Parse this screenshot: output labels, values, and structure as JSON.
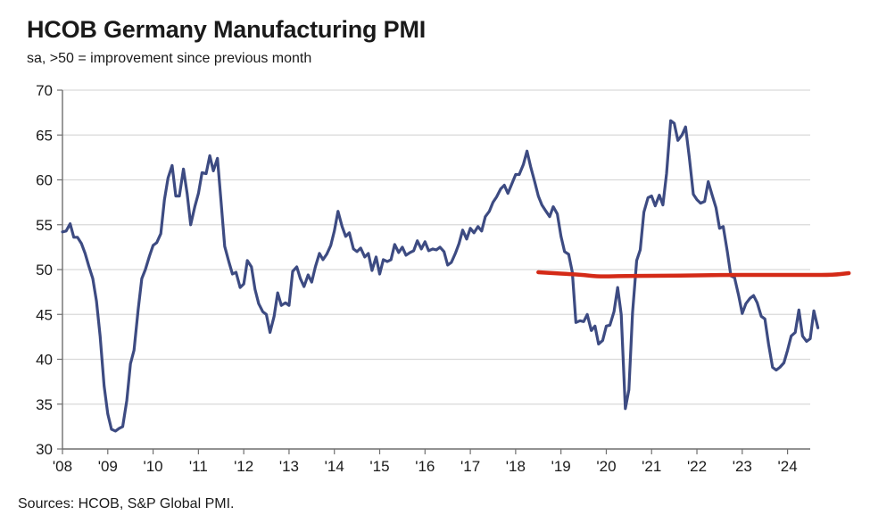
{
  "header": {
    "title": "HCOB Germany Manufacturing PMI",
    "subtitle": "sa, >50 = improvement since previous month"
  },
  "footer": {
    "source": "Sources: HCOB, S&P Global PMI."
  },
  "colors": {
    "series": "#3d4b82",
    "annotation": "#d42a17",
    "grid": "#d9d9d9",
    "axis": "#6f6f6f"
  },
  "chart_data": {
    "type": "line",
    "xlabel": "",
    "ylabel": "",
    "ylim": [
      30,
      70
    ],
    "yticks": [
      30,
      35,
      40,
      45,
      50,
      55,
      60,
      65,
      70
    ],
    "xlim": [
      2008.0,
      2024.5
    ],
    "xtick_labels": [
      "'08",
      "'09",
      "'10",
      "'11",
      "'12",
      "'13",
      "'14",
      "'15",
      "'16",
      "'17",
      "'18",
      "'19",
      "'20",
      "'21",
      "'22",
      "'23",
      "'24"
    ],
    "grid": "horizontal",
    "series": [
      {
        "values": [
          [
            2008.0,
            54.2
          ],
          [
            2008.08,
            54.3
          ],
          [
            2008.17,
            55.1
          ],
          [
            2008.25,
            53.6
          ],
          [
            2008.33,
            53.6
          ],
          [
            2008.42,
            52.9
          ],
          [
            2008.5,
            51.8
          ],
          [
            2008.58,
            50.4
          ],
          [
            2008.67,
            49.0
          ],
          [
            2008.75,
            46.5
          ],
          [
            2008.83,
            42.6
          ],
          [
            2008.92,
            37.0
          ],
          [
            2009.0,
            33.9
          ],
          [
            2009.08,
            32.2
          ],
          [
            2009.17,
            32.0
          ],
          [
            2009.25,
            32.3
          ],
          [
            2009.33,
            32.5
          ],
          [
            2009.42,
            35.4
          ],
          [
            2009.5,
            39.5
          ],
          [
            2009.58,
            41.0
          ],
          [
            2009.67,
            45.5
          ],
          [
            2009.75,
            49.0
          ],
          [
            2009.83,
            50.0
          ],
          [
            2009.92,
            51.5
          ],
          [
            2010.0,
            52.7
          ],
          [
            2010.08,
            53.0
          ],
          [
            2010.17,
            54.0
          ],
          [
            2010.25,
            57.8
          ],
          [
            2010.33,
            60.2
          ],
          [
            2010.42,
            61.6
          ],
          [
            2010.5,
            58.2
          ],
          [
            2010.58,
            58.2
          ],
          [
            2010.67,
            61.2
          ],
          [
            2010.75,
            58.5
          ],
          [
            2010.83,
            55.0
          ],
          [
            2010.92,
            57.0
          ],
          [
            2011.0,
            58.5
          ],
          [
            2011.08,
            60.8
          ],
          [
            2011.17,
            60.7
          ],
          [
            2011.25,
            62.7
          ],
          [
            2011.33,
            61.0
          ],
          [
            2011.42,
            62.4
          ],
          [
            2011.5,
            57.5
          ],
          [
            2011.58,
            52.6
          ],
          [
            2011.67,
            50.9
          ],
          [
            2011.75,
            49.5
          ],
          [
            2011.83,
            49.7
          ],
          [
            2011.92,
            48.0
          ],
          [
            2012.0,
            48.4
          ],
          [
            2012.08,
            51.0
          ],
          [
            2012.17,
            50.3
          ],
          [
            2012.25,
            47.8
          ],
          [
            2012.33,
            46.2
          ],
          [
            2012.42,
            45.3
          ],
          [
            2012.5,
            45.0
          ],
          [
            2012.58,
            43.0
          ],
          [
            2012.67,
            44.8
          ],
          [
            2012.75,
            47.4
          ],
          [
            2012.83,
            46.0
          ],
          [
            2012.92,
            46.3
          ],
          [
            2013.0,
            46.0
          ],
          [
            2013.08,
            49.8
          ],
          [
            2013.17,
            50.3
          ],
          [
            2013.25,
            49.0
          ],
          [
            2013.33,
            48.1
          ],
          [
            2013.42,
            49.4
          ],
          [
            2013.5,
            48.6
          ],
          [
            2013.58,
            50.3
          ],
          [
            2013.67,
            51.8
          ],
          [
            2013.75,
            51.1
          ],
          [
            2013.83,
            51.7
          ],
          [
            2013.92,
            52.7
          ],
          [
            2014.0,
            54.3
          ],
          [
            2014.08,
            56.5
          ],
          [
            2014.17,
            54.8
          ],
          [
            2014.25,
            53.7
          ],
          [
            2014.33,
            54.1
          ],
          [
            2014.42,
            52.3
          ],
          [
            2014.5,
            52.0
          ],
          [
            2014.58,
            52.4
          ],
          [
            2014.67,
            51.4
          ],
          [
            2014.75,
            51.8
          ],
          [
            2014.83,
            49.9
          ],
          [
            2014.92,
            51.4
          ],
          [
            2015.0,
            49.5
          ],
          [
            2015.08,
            51.1
          ],
          [
            2015.17,
            50.9
          ],
          [
            2015.25,
            51.1
          ],
          [
            2015.33,
            52.8
          ],
          [
            2015.42,
            51.9
          ],
          [
            2015.5,
            52.5
          ],
          [
            2015.58,
            51.6
          ],
          [
            2015.67,
            51.9
          ],
          [
            2015.75,
            52.1
          ],
          [
            2015.83,
            53.2
          ],
          [
            2015.92,
            52.3
          ],
          [
            2016.0,
            53.1
          ],
          [
            2016.08,
            52.1
          ],
          [
            2016.17,
            52.3
          ],
          [
            2016.25,
            52.2
          ],
          [
            2016.33,
            52.5
          ],
          [
            2016.42,
            52.0
          ],
          [
            2016.5,
            50.5
          ],
          [
            2016.58,
            50.8
          ],
          [
            2016.67,
            51.8
          ],
          [
            2016.75,
            52.9
          ],
          [
            2016.83,
            54.4
          ],
          [
            2016.92,
            53.4
          ],
          [
            2017.0,
            54.6
          ],
          [
            2017.08,
            54.1
          ],
          [
            2017.17,
            54.8
          ],
          [
            2017.25,
            54.3
          ],
          [
            2017.33,
            55.9
          ],
          [
            2017.42,
            56.5
          ],
          [
            2017.5,
            57.5
          ],
          [
            2017.58,
            58.1
          ],
          [
            2017.67,
            59.0
          ],
          [
            2017.75,
            59.4
          ],
          [
            2017.83,
            58.5
          ],
          [
            2017.92,
            59.6
          ],
          [
            2018.0,
            60.6
          ],
          [
            2018.08,
            60.6
          ],
          [
            2018.17,
            61.7
          ],
          [
            2018.25,
            63.2
          ],
          [
            2018.33,
            61.5
          ],
          [
            2018.42,
            59.8
          ],
          [
            2018.5,
            58.2
          ],
          [
            2018.58,
            57.2
          ],
          [
            2018.67,
            56.5
          ],
          [
            2018.75,
            55.9
          ],
          [
            2018.83,
            57.0
          ],
          [
            2018.92,
            56.2
          ],
          [
            2019.0,
            53.7
          ],
          [
            2019.08,
            52.0
          ],
          [
            2019.17,
            51.7
          ],
          [
            2019.25,
            49.7
          ],
          [
            2019.33,
            44.1
          ],
          [
            2019.42,
            44.3
          ],
          [
            2019.5,
            44.2
          ],
          [
            2019.58,
            45.0
          ],
          [
            2019.67,
            43.2
          ],
          [
            2019.75,
            43.7
          ],
          [
            2019.83,
            41.7
          ],
          [
            2019.92,
            42.1
          ],
          [
            2020.0,
            43.7
          ],
          [
            2020.08,
            43.8
          ],
          [
            2020.17,
            45.3
          ],
          [
            2020.25,
            48.0
          ],
          [
            2020.33,
            45.0
          ],
          [
            2020.42,
            34.5
          ],
          [
            2020.5,
            36.6
          ],
          [
            2020.58,
            45.2
          ],
          [
            2020.67,
            51.0
          ],
          [
            2020.75,
            52.2
          ],
          [
            2020.83,
            56.4
          ],
          [
            2020.92,
            58.0
          ],
          [
            2021.0,
            58.2
          ],
          [
            2021.08,
            57.1
          ],
          [
            2021.17,
            58.3
          ],
          [
            2021.25,
            57.2
          ],
          [
            2021.33,
            60.7
          ],
          [
            2021.42,
            66.6
          ],
          [
            2021.5,
            66.3
          ],
          [
            2021.58,
            64.4
          ],
          [
            2021.67,
            65.0
          ],
          [
            2021.75,
            65.9
          ],
          [
            2021.83,
            62.6
          ],
          [
            2021.92,
            58.4
          ],
          [
            2022.0,
            57.8
          ],
          [
            2022.08,
            57.4
          ],
          [
            2022.17,
            57.6
          ],
          [
            2022.25,
            59.8
          ],
          [
            2022.33,
            58.4
          ],
          [
            2022.42,
            56.9
          ],
          [
            2022.5,
            54.6
          ],
          [
            2022.58,
            54.8
          ],
          [
            2022.67,
            52.0
          ],
          [
            2022.75,
            49.3
          ],
          [
            2022.83,
            49.1
          ],
          [
            2022.92,
            47.1
          ],
          [
            2023.0,
            45.1
          ],
          [
            2023.08,
            46.2
          ],
          [
            2023.17,
            46.8
          ],
          [
            2023.25,
            47.1
          ],
          [
            2023.33,
            46.3
          ],
          [
            2023.42,
            44.8
          ],
          [
            2023.5,
            44.5
          ],
          [
            2023.58,
            41.7
          ],
          [
            2023.67,
            39.1
          ],
          [
            2023.75,
            38.8
          ],
          [
            2023.83,
            39.1
          ],
          [
            2023.92,
            39.6
          ],
          [
            2024.0,
            41.0
          ],
          [
            2024.08,
            42.6
          ],
          [
            2024.17,
            43.0
          ],
          [
            2024.25,
            45.5
          ],
          [
            2024.33,
            42.6
          ],
          [
            2024.42,
            42.0
          ],
          [
            2024.5,
            42.3
          ],
          [
            2024.58,
            45.4
          ],
          [
            2024.67,
            43.5
          ]
        ]
      }
    ],
    "annotations": [
      {
        "type": "hand-drawn-line",
        "values": [
          [
            2018.5,
            49.7
          ],
          [
            2018.83,
            49.6
          ],
          [
            2019.17,
            49.5
          ],
          [
            2019.5,
            49.4
          ],
          [
            2019.83,
            49.2
          ],
          [
            2020.5,
            49.3
          ],
          [
            2021.5,
            49.3
          ],
          [
            2022.5,
            49.4
          ],
          [
            2023.5,
            49.4
          ],
          [
            2024.5,
            49.4
          ],
          [
            2025.0,
            49.4
          ],
          [
            2025.35,
            49.6
          ]
        ]
      }
    ]
  }
}
